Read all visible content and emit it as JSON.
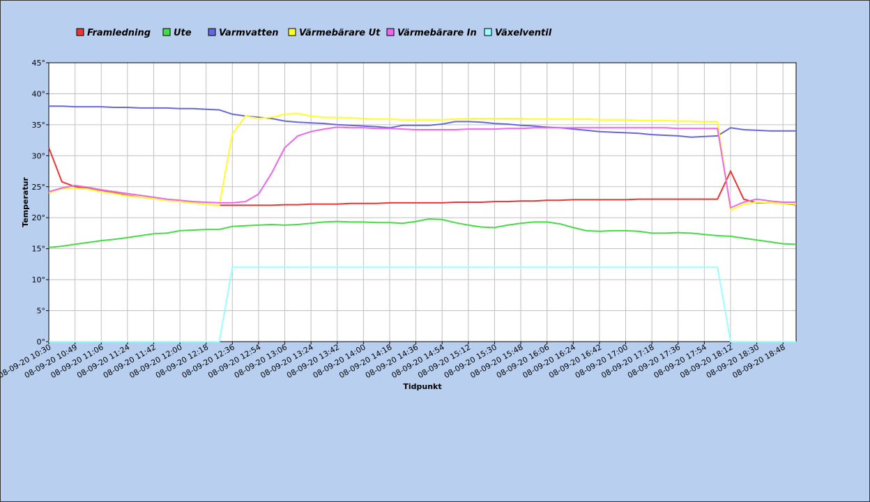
{
  "chart_data": {
    "type": "line",
    "x_label": "Tidpunkt",
    "y_label": "Temperatur",
    "grid": true,
    "legend_position": "top",
    "ylim": [
      0,
      45
    ],
    "yticks": [
      {
        "value": 0,
        "label": "0°"
      },
      {
        "value": 5,
        "label": "5°"
      },
      {
        "value": 10,
        "label": "10°"
      },
      {
        "value": 15,
        "label": "15°"
      },
      {
        "value": 20,
        "label": "20°"
      },
      {
        "value": 25,
        "label": "25°"
      },
      {
        "value": 30,
        "label": "30°"
      },
      {
        "value": 35,
        "label": "35°"
      },
      {
        "value": 40,
        "label": "40°"
      },
      {
        "value": 45,
        "label": "45°"
      }
    ],
    "categories": [
      "08-09-20 10:30",
      null,
      "08-09-20 10:49",
      null,
      "08-09-20 11:06",
      null,
      "08-09-20 11:24",
      null,
      "08-09-20 11:42",
      null,
      "08-09-20 12:00",
      null,
      "08-09-20 12:18",
      null,
      "08-09-20 12:36",
      null,
      "08-09-20 12:54",
      null,
      "08-09-20 13:06",
      null,
      "08-09-20 13:24",
      null,
      "08-09-20 13:42",
      null,
      "08-09-20 14:00",
      null,
      "08-09-20 14:18",
      null,
      "08-09-20 14:36",
      null,
      "08-09-20 14:54",
      null,
      "08-09-20 15:12",
      null,
      "08-09-20 15:30",
      null,
      "08-09-20 15:48",
      null,
      "08-09-20 16:06",
      null,
      "08-09-20 16:24",
      null,
      "08-09-20 16:42",
      null,
      "08-09-20 17:00",
      null,
      "08-09-20 17:18",
      null,
      "08-09-20 17:36",
      null,
      "08-09-20 17:54",
      null,
      "08-09-20 18:12",
      null,
      "08-09-20 18:30",
      null,
      "08-09-20 18:48",
      null
    ],
    "series": [
      {
        "name": "Framledning",
        "color": "#ee3333",
        "values": [
          31.3,
          25.8,
          25.0,
          24.7,
          24.3,
          24.0,
          23.6,
          23.3,
          23.1,
          22.8,
          22.6,
          22.4,
          22.2,
          22.0,
          22.0,
          22.0,
          22.0,
          22.0,
          22.1,
          22.1,
          22.2,
          22.2,
          22.2,
          22.3,
          22.3,
          22.3,
          22.4,
          22.4,
          22.4,
          22.4,
          22.4,
          22.5,
          22.5,
          22.5,
          22.6,
          22.6,
          22.7,
          22.7,
          22.8,
          22.8,
          22.9,
          22.9,
          22.9,
          22.9,
          22.9,
          23.0,
          23.0,
          23.0,
          23.0,
          23.0,
          23.0,
          23.0,
          27.5,
          23.0,
          22.4,
          22.4,
          22.3,
          22.1
        ]
      },
      {
        "name": "Ute",
        "color": "#44dd44",
        "values": [
          15.2,
          15.4,
          15.7,
          16.0,
          16.3,
          16.5,
          16.8,
          17.1,
          17.4,
          17.5,
          17.9,
          18.0,
          18.1,
          18.1,
          18.6,
          18.7,
          18.8,
          18.9,
          18.8,
          18.9,
          19.1,
          19.3,
          19.4,
          19.3,
          19.3,
          19.2,
          19.2,
          19.1,
          19.4,
          19.8,
          19.7,
          19.2,
          18.8,
          18.5,
          18.4,
          18.8,
          19.1,
          19.3,
          19.3,
          19.0,
          18.4,
          17.9,
          17.8,
          17.9,
          17.9,
          17.8,
          17.5,
          17.5,
          17.6,
          17.5,
          17.3,
          17.1,
          17.0,
          16.7,
          16.4,
          16.1,
          15.8,
          15.7
        ]
      },
      {
        "name": "Varmvatten",
        "color": "#6666dd",
        "values": [
          38.0,
          38.0,
          37.9,
          37.9,
          37.9,
          37.8,
          37.8,
          37.7,
          37.7,
          37.7,
          37.6,
          37.6,
          37.5,
          37.4,
          36.7,
          36.4,
          36.2,
          36.0,
          35.6,
          35.4,
          35.3,
          35.2,
          35.0,
          34.9,
          34.8,
          34.7,
          34.5,
          34.9,
          34.9,
          34.9,
          35.1,
          35.5,
          35.5,
          35.4,
          35.2,
          35.1,
          34.9,
          34.8,
          34.6,
          34.5,
          34.3,
          34.1,
          33.9,
          33.8,
          33.7,
          33.6,
          33.4,
          33.3,
          33.2,
          33.0,
          33.1,
          33.2,
          34.5,
          34.2,
          34.1,
          34.0,
          34.0,
          34.0
        ]
      },
      {
        "name": "Värmebärare Ut",
        "color": "#ffff22",
        "values": [
          24.0,
          24.7,
          24.8,
          24.6,
          24.2,
          23.9,
          23.5,
          23.3,
          23.1,
          22.8,
          22.6,
          22.4,
          22.2,
          22.0,
          33.5,
          36.4,
          36.0,
          36.2,
          36.7,
          36.8,
          36.4,
          36.2,
          36.2,
          36.1,
          36.0,
          35.9,
          35.9,
          35.8,
          35.8,
          35.8,
          35.8,
          35.9,
          36.0,
          36.0,
          36.0,
          36.0,
          36.0,
          35.9,
          35.9,
          35.9,
          35.9,
          35.9,
          35.8,
          35.8,
          35.8,
          35.7,
          35.7,
          35.7,
          35.6,
          35.6,
          35.5,
          35.5,
          21.2,
          22.2,
          22.5,
          22.4,
          22.3,
          22.2
        ]
      },
      {
        "name": "Värmebärare In",
        "color": "#ee66ee",
        "values": [
          24.2,
          24.8,
          25.2,
          24.9,
          24.5,
          24.2,
          23.9,
          23.6,
          23.3,
          23.0,
          22.8,
          22.6,
          22.5,
          22.4,
          22.4,
          22.6,
          23.8,
          27.2,
          31.3,
          33.2,
          33.9,
          34.3,
          34.6,
          34.5,
          34.5,
          34.4,
          34.4,
          34.3,
          34.2,
          34.2,
          34.2,
          34.2,
          34.3,
          34.3,
          34.3,
          34.4,
          34.4,
          34.5,
          34.5,
          34.5,
          34.5,
          34.5,
          34.5,
          34.5,
          34.5,
          34.5,
          34.5,
          34.5,
          34.4,
          34.4,
          34.4,
          34.4,
          21.6,
          22.5,
          23.0,
          22.7,
          22.5,
          22.5
        ]
      },
      {
        "name": "Växelventil",
        "color": "#99ffff",
        "values": [
          0,
          0,
          0,
          0,
          0,
          0,
          0,
          0,
          0,
          0,
          0,
          0,
          0,
          0,
          12,
          12,
          12,
          12,
          12,
          12,
          12,
          12,
          12,
          12,
          12,
          12,
          12,
          12,
          12,
          12,
          12,
          12,
          12,
          12,
          12,
          12,
          12,
          12,
          12,
          12,
          12,
          12,
          12,
          12,
          12,
          12,
          12,
          12,
          12,
          12,
          12,
          12,
          0,
          0,
          0,
          0,
          0,
          0
        ]
      }
    ]
  }
}
